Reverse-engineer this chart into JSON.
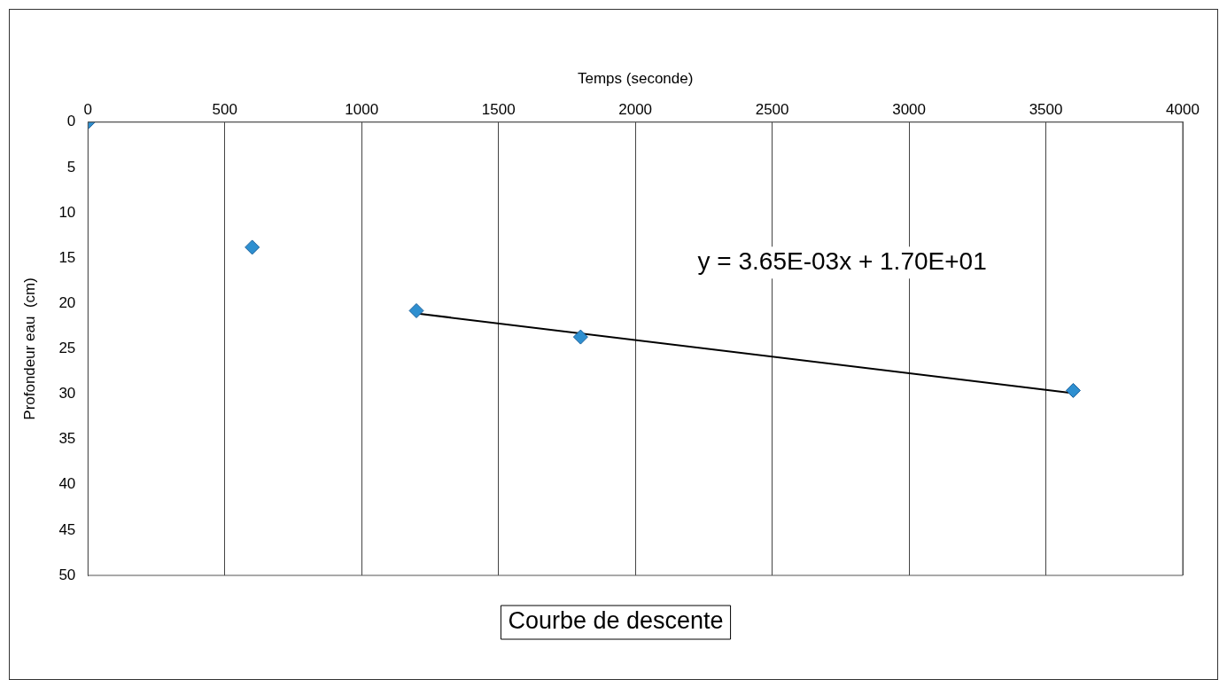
{
  "chart_data": {
    "type": "scatter",
    "title": "Courbe de descente",
    "xlabel": "Temps (seconde)",
    "ylabel": "Profondeur eau  (cm)",
    "x": [
      0,
      600,
      1200,
      1800,
      3600
    ],
    "values": [
      0,
      13.8,
      20.8,
      23.7,
      29.6
    ],
    "color": "#2e8fd0",
    "marker": "diamond",
    "series": [
      {
        "type": "line",
        "x": [
          1200,
          3600
        ],
        "values": [
          21.1,
          29.9
        ],
        "color": "#000000",
        "marker": "none"
      }
    ],
    "xlim": [
      0,
      4000
    ],
    "xticks": [
      0,
      500,
      1000,
      1500,
      2000,
      2500,
      3000,
      3500,
      4000
    ],
    "ylim": [
      50,
      0
    ],
    "yticks": [
      0,
      5,
      10,
      15,
      20,
      25,
      30,
      35,
      40,
      45,
      50
    ],
    "grid": "x",
    "legend": false,
    "annotations": [
      "y = 3.65E-03x + 1.70E+01"
    ]
  }
}
